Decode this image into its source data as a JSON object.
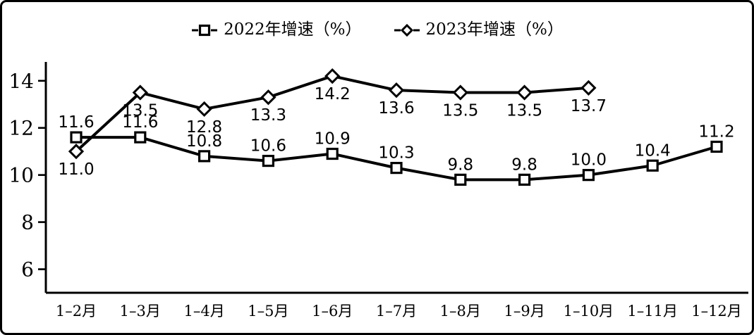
{
  "figure": {
    "colors": {
      "ink": "#000000",
      "background": "#ffffff",
      "border": "#000000"
    }
  },
  "legend": {
    "items": [
      {
        "label": "2022年增速（%）",
        "marker": "square"
      },
      {
        "label": "2023年增速（%）",
        "marker": "diamond"
      }
    ]
  },
  "chart_data": {
    "type": "line",
    "title": "",
    "xlabel": "",
    "ylabel": "",
    "grid": false,
    "legend_position": "top-center",
    "categories": [
      "1–2月",
      "1–3月",
      "1–4月",
      "1–5月",
      "1–6月",
      "1–7月",
      "1–8月",
      "1–9月",
      "1–10月",
      "1–11月",
      "1–12月"
    ],
    "series": [
      {
        "name": "2022年增速（%）",
        "short": "2022",
        "marker": "square",
        "label_position": "above",
        "values": [
          11.6,
          11.6,
          10.8,
          10.6,
          10.9,
          10.3,
          9.8,
          9.8,
          10.0,
          10.4,
          11.2
        ]
      },
      {
        "name": "2023年增速（%）",
        "short": "2023",
        "marker": "diamond",
        "label_position": "below",
        "values": [
          11.0,
          13.5,
          12.8,
          13.3,
          14.2,
          13.6,
          13.5,
          13.5,
          13.7
        ]
      }
    ],
    "yticks": [
      6,
      8,
      10,
      12,
      14
    ],
    "ylim": [
      5,
      14.8
    ]
  }
}
